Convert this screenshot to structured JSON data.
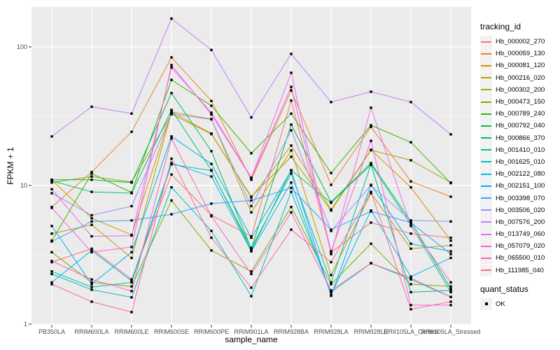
{
  "axes": {
    "x": {
      "title": "sample_name",
      "categories": [
        "PB350LA",
        "RRIM600LA",
        "RRIM600LE",
        "RRIM600SE",
        "RRIM600PE",
        "RRIM901LA",
        "RRIM928BA",
        "RRIM928LA",
        "RRIM928LE",
        "RRII105LA_Control",
        "RRII105LA_Stressed"
      ]
    },
    "y": {
      "title": "FPKM + 1",
      "scale": "log10",
      "ticks": [
        {
          "label": "1",
          "value": 1
        },
        {
          "label": "10",
          "value": 10
        },
        {
          "label": "100",
          "value": 100
        }
      ]
    }
  },
  "legend": {
    "tracking": {
      "title": "tracking_id"
    },
    "quant": {
      "title": "quant_status",
      "items": [
        {
          "label": "OK",
          "marker": "black-square"
        }
      ]
    }
  },
  "style": {
    "panel_bg": "#EBEBEB",
    "grid_color": "#FFFFFF",
    "tick_text_color": "#4D4D4D",
    "tick_mark_color": "#333333",
    "point_color": "#000000"
  },
  "chart_data": {
    "type": "line",
    "title": "",
    "xlabel": "sample_name",
    "ylabel": "FPKM + 1",
    "y_scale": "log10",
    "ylim": [
      1,
      194
    ],
    "grid": true,
    "legend_position": "right",
    "point_shape": "square",
    "major_breaks": [
      1,
      10,
      100
    ],
    "minor_breaks": [
      3.1623,
      31.623
    ],
    "categories": [
      "PB350LA",
      "RRIM600LA",
      "RRIM600LE",
      "RRIM600SE",
      "RRIM600PE",
      "RRIM901LA",
      "RRIM928BA",
      "RRIM928LA",
      "RRIM928LE",
      "RRII105LA_Control",
      "RRII105LA_Stressed"
    ],
    "quant_status": "OK",
    "series": [
      {
        "name": "Hb_000002_270",
        "color": "#F8766D",
        "values": [
          2.8,
          3.5,
          2.1,
          12.0,
          6.1,
          4.3,
          41,
          3.3,
          5.4,
          4.5,
          4.2
        ]
      },
      {
        "name": "Hb_000059_130",
        "color": "#EA8331",
        "values": [
          7.0,
          12.5,
          24.4,
          84,
          40.7,
          11.0,
          48.5,
          10.1,
          26.5,
          10.7,
          8.3
        ]
      },
      {
        "name": "Hb_000081_120",
        "color": "#D89000",
        "values": [
          11.0,
          5.8,
          4.4,
          33.9,
          23.7,
          8.2,
          19.4,
          6.7,
          18.1,
          9.7,
          4.0
        ]
      },
      {
        "name": "Hb_000216_020",
        "color": "#C09B00",
        "values": [
          4.5,
          5.2,
          3.0,
          33.9,
          30.2,
          6.4,
          17.9,
          2.26,
          8.8,
          3.5,
          3.7
        ]
      },
      {
        "name": "Hb_000302_200",
        "color": "#A3A500",
        "values": [
          10.5,
          11.6,
          10.6,
          32.7,
          23.5,
          8.3,
          16.1,
          6.6,
          18.0,
          15.2,
          10.5
        ]
      },
      {
        "name": "Hb_000473_150",
        "color": "#7CAE00",
        "values": [
          3.3,
          2.0,
          1.87,
          7.8,
          3.4,
          2.4,
          7.0,
          1.94,
          3.8,
          1.94,
          1.87
        ]
      },
      {
        "name": "Hb_000789_240",
        "color": "#39B600",
        "values": [
          4.0,
          12.2,
          8.9,
          57.8,
          37.6,
          17.1,
          33,
          12.3,
          27.2,
          20.5,
          10.4
        ]
      },
      {
        "name": "Hb_000792_040",
        "color": "#00BB4E",
        "values": [
          11.0,
          11.0,
          10.5,
          46.4,
          17.7,
          3.5,
          27.5,
          7.6,
          14.5,
          5.5,
          1.8
        ]
      },
      {
        "name": "Hb_000866_370",
        "color": "#00BF7D",
        "values": [
          10.8,
          9.0,
          8.8,
          35.1,
          12.9,
          3.4,
          12.9,
          7.5,
          14.1,
          1.7,
          1.75
        ]
      },
      {
        "name": "Hb_001410_010",
        "color": "#00C1A3",
        "values": [
          2.4,
          1.85,
          2.0,
          14.2,
          12.8,
          3.55,
          12.2,
          2.0,
          14.2,
          5.2,
          1.7
        ]
      },
      {
        "name": "Hb_001625_010",
        "color": "#00BFC4",
        "values": [
          2.3,
          1.77,
          1.56,
          9.7,
          4.7,
          1.59,
          9.0,
          1.7,
          2.75,
          2.1,
          1.57
        ]
      },
      {
        "name": "Hb_002122_080",
        "color": "#00BAE0",
        "values": [
          2.0,
          3.4,
          2.05,
          14.5,
          11.6,
          3.35,
          10.5,
          1.63,
          6.6,
          2.2,
          3.0
        ]
      },
      {
        "name": "Hb_002151_100",
        "color": "#00B0F6",
        "values": [
          5.1,
          1.94,
          3.3,
          22.6,
          14.3,
          4.2,
          12.8,
          1.6,
          10.1,
          3.8,
          3.35
        ]
      },
      {
        "name": "Hb_003398_070",
        "color": "#35A2FF",
        "values": [
          3.95,
          5.5,
          5.6,
          6.2,
          7.4,
          7.8,
          9.6,
          4.8,
          6.5,
          5.4,
          3.2
        ]
      },
      {
        "name": "Hb_003506_020",
        "color": "#9590FF",
        "values": [
          8.8,
          6.1,
          7.1,
          32.7,
          30.0,
          7.1,
          25,
          4.7,
          10.0,
          5.6,
          5.5
        ]
      },
      {
        "name": "Hb_007576_200",
        "color": "#C77CFF",
        "values": [
          22.6,
          37,
          33,
          160,
          95,
          31,
          89,
          40,
          47.5,
          40,
          23.4
        ]
      },
      {
        "name": "Hb_013749_060",
        "color": "#E76BF3",
        "values": [
          9.4,
          4.3,
          4.35,
          71,
          33.5,
          11.4,
          65,
          3.2,
          36.4,
          5.1,
          2.0
        ]
      },
      {
        "name": "Hb_057079_020",
        "color": "#FA62DB",
        "values": [
          6.9,
          3.3,
          3.6,
          74,
          32.5,
          11.3,
          51.5,
          3.35,
          21,
          1.37,
          1.37
        ]
      },
      {
        "name": "Hb_065500_010",
        "color": "#FF62BC",
        "values": [
          2.85,
          2.1,
          1.73,
          21.8,
          6.0,
          2.3,
          6.4,
          1.75,
          2.75,
          2.15,
          1.57
        ]
      },
      {
        "name": "Hb_111985_040",
        "color": "#FF6A98",
        "values": [
          1.94,
          1.45,
          1.22,
          15.6,
          4.2,
          1.83,
          4.8,
          2.8,
          9.0,
          1.28,
          1.45
        ]
      }
    ]
  }
}
